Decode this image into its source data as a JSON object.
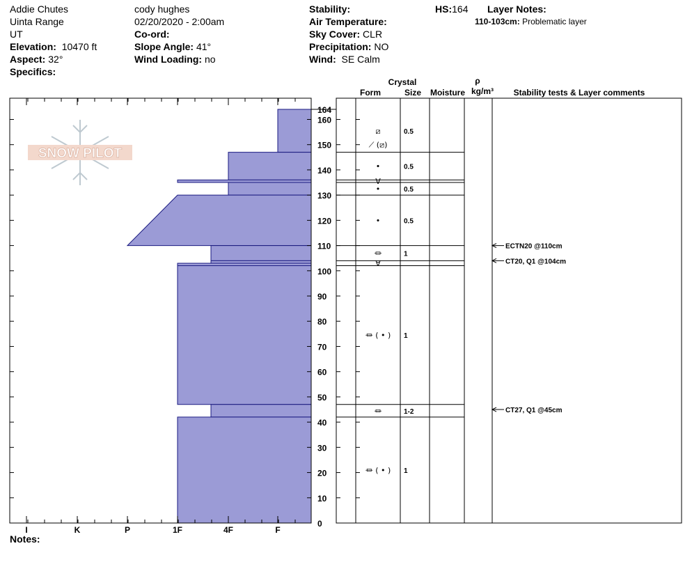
{
  "header": {
    "location": "Addie Chutes",
    "range": "Uinta Range",
    "state": "UT",
    "elevation_label": "Elevation:",
    "elevation": "10470 ft",
    "aspect_label": "Aspect:",
    "aspect": "32°",
    "specifics_label": "Specifics:",
    "observer": "cody hughes",
    "datetime": "02/20/2020 - 2:00am",
    "coord_label": "Co-ord:",
    "slope_label": "Slope Angle:",
    "slope": "41°",
    "wind_loading_label": "Wind Loading:",
    "wind_loading": "no",
    "stability_label": "Stability:",
    "air_temp_label": "Air Temperature:",
    "sky_cover_label": "Sky Cover:",
    "sky_cover": "CLR",
    "precip_label": "Precipitation:",
    "precip": "NO",
    "wind_label": "Wind:",
    "wind": "SE Calm",
    "hs_label": "HS:",
    "hs": "164",
    "layer_notes_label": "Layer Notes:",
    "layer_note_range": "110-103cm:",
    "layer_note_text": "Problematic layer"
  },
  "notes_label": "Notes:",
  "logo_text": "SNOW PILOT",
  "colors": {
    "hardness_fill": "#9b9bd6",
    "hardness_stroke": "#1a1a80"
  },
  "chart_data": {
    "type": "area",
    "ylim": [
      0,
      164
    ],
    "hs": 164,
    "yticks": [
      0,
      10,
      20,
      30,
      40,
      50,
      60,
      70,
      80,
      90,
      100,
      110,
      120,
      130,
      140,
      150,
      160
    ],
    "hardness_scale": [
      "I",
      "K",
      "P",
      "1F",
      "4F",
      "F"
    ],
    "hardness_profile": [
      {
        "top": 164,
        "bottom": 147,
        "hardness": "F"
      },
      {
        "top": 147,
        "bottom": 136,
        "hardness": "4F"
      },
      {
        "top": 136,
        "bottom": 135,
        "hardness": "1F"
      },
      {
        "top": 135,
        "bottom": 130,
        "hardness": "4F"
      },
      {
        "top": 130,
        "bottom": 110,
        "hardness_top": "1F",
        "hardness_bottom": "P"
      },
      {
        "top": 110,
        "bottom": 104,
        "hardness": "1F+"
      },
      {
        "top": 104,
        "bottom": 103,
        "hardness": "1F+"
      },
      {
        "top": 103,
        "bottom": 102,
        "hardness": "1F"
      },
      {
        "top": 102,
        "bottom": 47,
        "hardness": "1F"
      },
      {
        "top": 47,
        "bottom": 42,
        "hardness": "1F+"
      },
      {
        "top": 42,
        "bottom": 0,
        "hardness": "1F"
      }
    ],
    "layers": [
      {
        "top": 164,
        "bottom": 147,
        "form": "⧄",
        "size": "0.5"
      },
      {
        "top": 147,
        "bottom": 136,
        "form": "•",
        "size": "0.5"
      },
      {
        "top": 136,
        "bottom": 135,
        "form": "∀",
        "size": ""
      },
      {
        "top": 135,
        "bottom": 130,
        "form": "•",
        "size": "0.5"
      },
      {
        "top": 130,
        "bottom": 110,
        "form": "•",
        "size": "0.5"
      },
      {
        "top": 110,
        "bottom": 104,
        "form": "⏛",
        "size": "1"
      },
      {
        "top": 104,
        "bottom": 102,
        "form": "∀",
        "size": ""
      },
      {
        "top": 102,
        "bottom": 47,
        "form": "⏛ ( • )",
        "size": "1"
      },
      {
        "top": 47,
        "bottom": 42,
        "form": "⏛",
        "size": "1-2"
      },
      {
        "top": 42,
        "bottom": 0,
        "form": "⏛ ( • )",
        "size": "1"
      }
    ],
    "top_layer_form": "⟋ (⧄)",
    "column_headers": {
      "crystal": "Crystal",
      "form": "Form",
      "size": "Size",
      "moisture": "Moisture",
      "rho": "ρ",
      "density_unit": "kg/m³",
      "comments": "Stability tests & Layer comments"
    },
    "tests": [
      {
        "depth": 110,
        "label": "ECTN20 @110cm"
      },
      {
        "depth": 104,
        "label": "CT20, Q1 @104cm"
      },
      {
        "depth": 45,
        "label": "CT27, Q1 @45cm"
      }
    ]
  }
}
